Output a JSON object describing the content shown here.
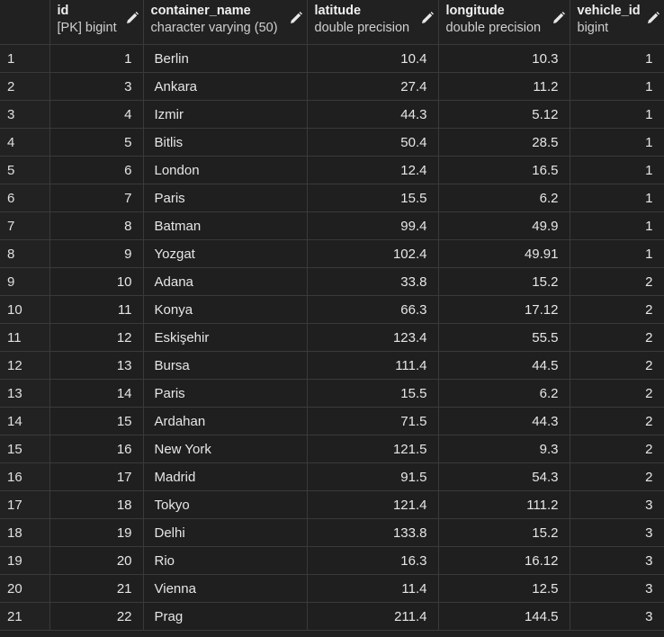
{
  "columns": [
    {
      "key": "id",
      "title": "id",
      "type": "[PK] bigint"
    },
    {
      "key": "container_name",
      "title": "container_name",
      "type": "character varying (50)"
    },
    {
      "key": "latitude",
      "title": "latitude",
      "type": "double precision"
    },
    {
      "key": "longitude",
      "title": "longitude",
      "type": "double precision"
    },
    {
      "key": "vehicle_id",
      "title": "vehicle_id",
      "type": "bigint"
    }
  ],
  "rows": [
    {
      "rn": "1",
      "id": "1",
      "container_name": "Berlin",
      "latitude": "10.4",
      "longitude": "10.3",
      "vehicle_id": "1"
    },
    {
      "rn": "2",
      "id": "3",
      "container_name": "Ankara",
      "latitude": "27.4",
      "longitude": "11.2",
      "vehicle_id": "1"
    },
    {
      "rn": "3",
      "id": "4",
      "container_name": "Izmir",
      "latitude": "44.3",
      "longitude": "5.12",
      "vehicle_id": "1"
    },
    {
      "rn": "4",
      "id": "5",
      "container_name": "Bitlis",
      "latitude": "50.4",
      "longitude": "28.5",
      "vehicle_id": "1"
    },
    {
      "rn": "5",
      "id": "6",
      "container_name": "London",
      "latitude": "12.4",
      "longitude": "16.5",
      "vehicle_id": "1"
    },
    {
      "rn": "6",
      "id": "7",
      "container_name": "Paris",
      "latitude": "15.5",
      "longitude": "6.2",
      "vehicle_id": "1"
    },
    {
      "rn": "7",
      "id": "8",
      "container_name": "Batman",
      "latitude": "99.4",
      "longitude": "49.9",
      "vehicle_id": "1"
    },
    {
      "rn": "8",
      "id": "9",
      "container_name": "Yozgat",
      "latitude": "102.4",
      "longitude": "49.91",
      "vehicle_id": "1"
    },
    {
      "rn": "9",
      "id": "10",
      "container_name": "Adana",
      "latitude": "33.8",
      "longitude": "15.2",
      "vehicle_id": "2"
    },
    {
      "rn": "10",
      "id": "11",
      "container_name": "Konya",
      "latitude": "66.3",
      "longitude": "17.12",
      "vehicle_id": "2"
    },
    {
      "rn": "11",
      "id": "12",
      "container_name": "Eskişehir",
      "latitude": "123.4",
      "longitude": "55.5",
      "vehicle_id": "2"
    },
    {
      "rn": "12",
      "id": "13",
      "container_name": "Bursa",
      "latitude": "111.4",
      "longitude": "44.5",
      "vehicle_id": "2"
    },
    {
      "rn": "13",
      "id": "14",
      "container_name": "Paris",
      "latitude": "15.5",
      "longitude": "6.2",
      "vehicle_id": "2"
    },
    {
      "rn": "14",
      "id": "15",
      "container_name": "Ardahan",
      "latitude": "71.5",
      "longitude": "44.3",
      "vehicle_id": "2"
    },
    {
      "rn": "15",
      "id": "16",
      "container_name": "New York",
      "latitude": "121.5",
      "longitude": "9.3",
      "vehicle_id": "2"
    },
    {
      "rn": "16",
      "id": "17",
      "container_name": "Madrid",
      "latitude": "91.5",
      "longitude": "54.3",
      "vehicle_id": "2"
    },
    {
      "rn": "17",
      "id": "18",
      "container_name": "Tokyo",
      "latitude": "121.4",
      "longitude": "111.2",
      "vehicle_id": "3"
    },
    {
      "rn": "18",
      "id": "19",
      "container_name": "Delhi",
      "latitude": "133.8",
      "longitude": "15.2",
      "vehicle_id": "3"
    },
    {
      "rn": "19",
      "id": "20",
      "container_name": "Rio",
      "latitude": "16.3",
      "longitude": "16.12",
      "vehicle_id": "3"
    },
    {
      "rn": "20",
      "id": "21",
      "container_name": "Vienna",
      "latitude": "11.4",
      "longitude": "12.5",
      "vehicle_id": "3"
    },
    {
      "rn": "21",
      "id": "22",
      "container_name": "Prag",
      "latitude": "211.4",
      "longitude": "144.5",
      "vehicle_id": "3"
    }
  ],
  "icons": {
    "edit": "pencil-icon"
  },
  "colors": {
    "background": "#212121",
    "grid": "#3a3a3a",
    "text": "#e6e6e6"
  }
}
